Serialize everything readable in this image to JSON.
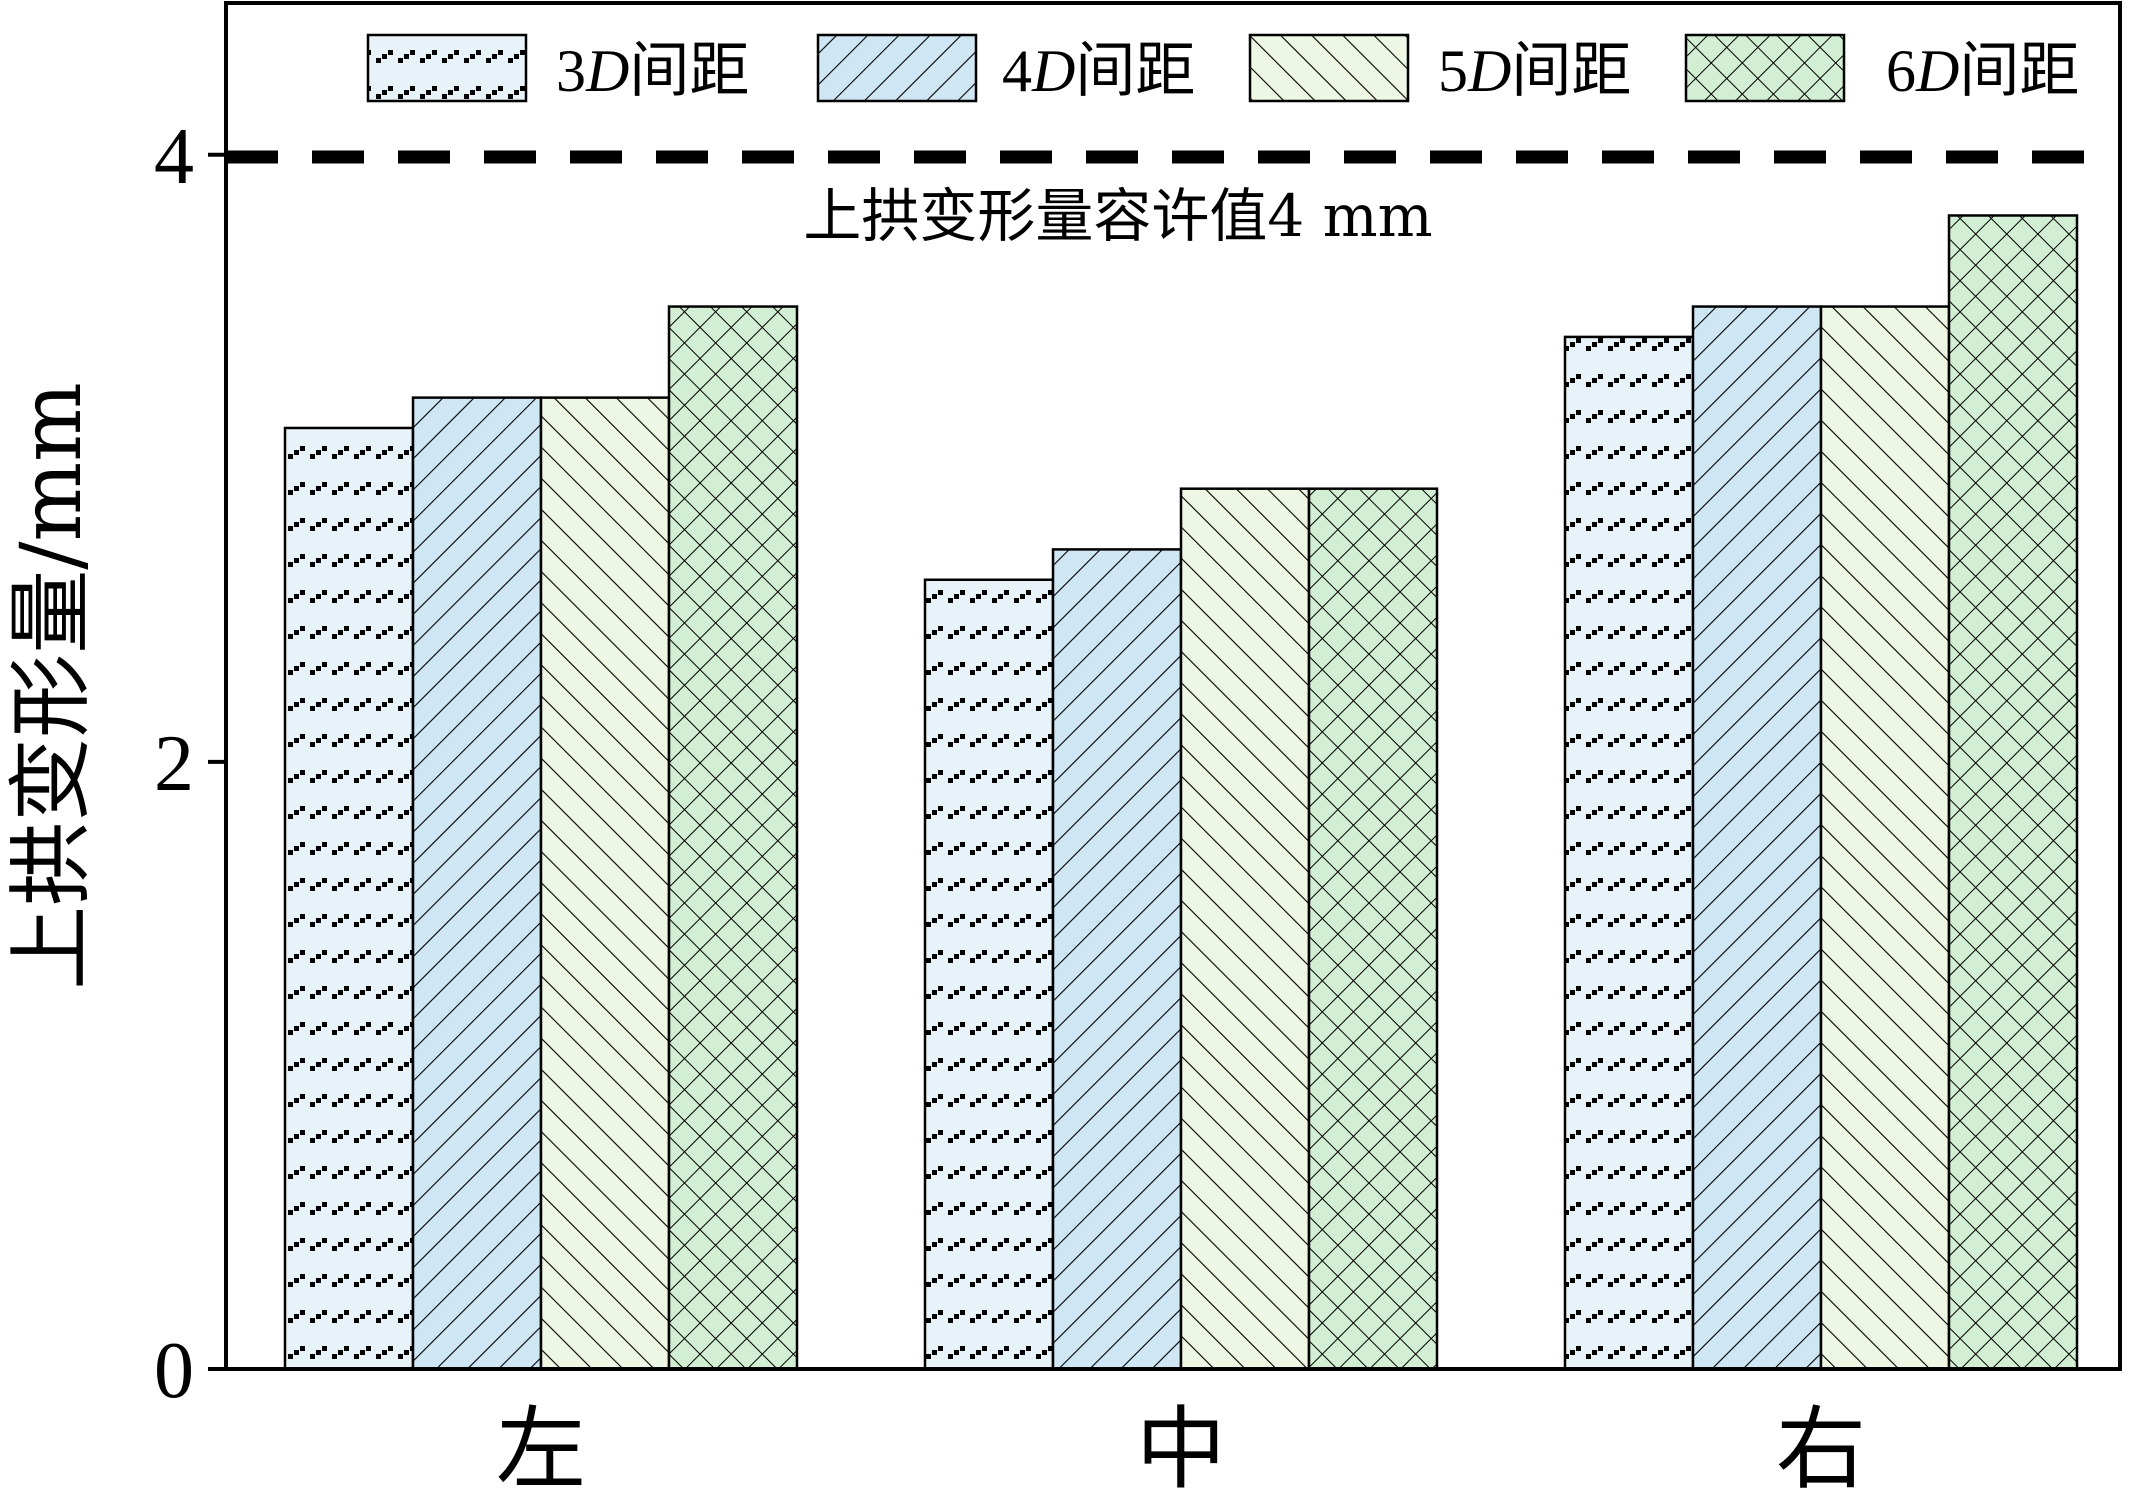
{
  "chart_data": {
    "type": "bar",
    "title": "",
    "xlabel": "",
    "ylabel": "上拱变形量/mm",
    "categories": [
      "左",
      "中",
      "右"
    ],
    "series": [
      {
        "name_num": "3",
        "name_var": "D",
        "name_tail": "间距",
        "values": [
          3.1,
          2.6,
          3.4
        ],
        "fill": "#e8f3f9",
        "pattern": "dashes"
      },
      {
        "name_num": "4",
        "name_var": "D",
        "name_tail": "间距",
        "values": [
          3.2,
          2.7,
          3.5
        ],
        "fill": "#cfe6f5",
        "pattern": "forward-diagonal"
      },
      {
        "name_num": "5",
        "name_var": "D",
        "name_tail": "间距",
        "values": [
          3.2,
          2.9,
          3.5
        ],
        "fill": "#eef6e4",
        "pattern": "back-diagonal"
      },
      {
        "name_num": "6",
        "name_var": "D",
        "name_tail": "间距",
        "values": [
          3.5,
          2.9,
          3.8
        ],
        "fill": "#d3efd3",
        "pattern": "crosshatch"
      }
    ],
    "ylim": [
      0,
      4.5
    ],
    "yticks": [
      0,
      2,
      4
    ],
    "reference_line": {
      "value": 4,
      "label": "上拱变形量容许值4 mm",
      "style": "dashed"
    },
    "legend_position": "top",
    "grid": false
  }
}
